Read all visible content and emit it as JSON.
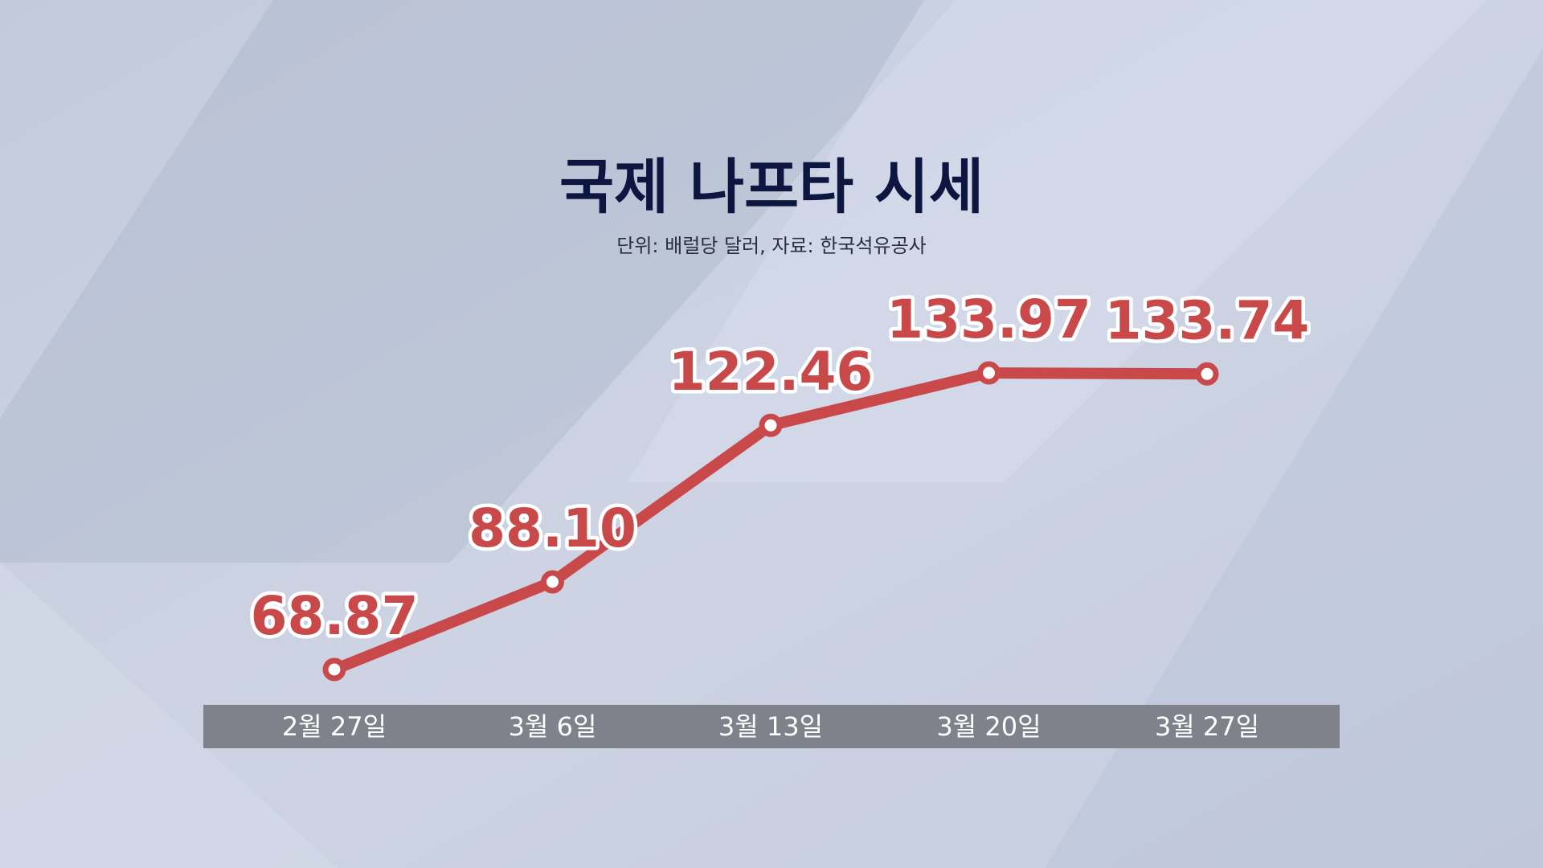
{
  "chart_data": {
    "type": "line",
    "title": "국제 나프타 시세",
    "subtitle": "단위: 배럴당 달러, 자료: 한국석유공사",
    "categories": [
      "2월 27일",
      "3월 6일",
      "3월 13일",
      "3월 20일",
      "3월 27일"
    ],
    "values": [
      68.87,
      88.1,
      122.46,
      133.97,
      133.74
    ],
    "value_labels": [
      "68.87",
      "88.10",
      "122.46",
      "133.97",
      "133.74"
    ],
    "color": "#c9484a"
  }
}
